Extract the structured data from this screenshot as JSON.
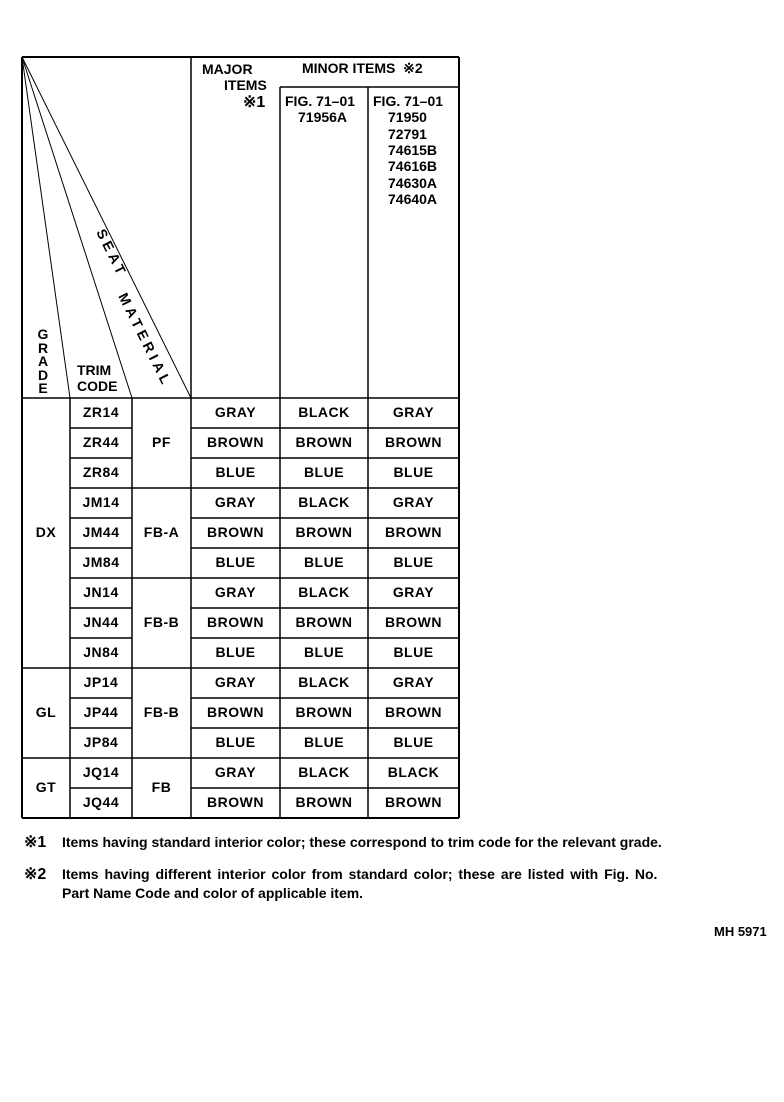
{
  "header": {
    "major_items": [
      "MAJOR",
      "ITEMS",
      "※1"
    ],
    "minor_items": "MINOR ITEMS  ※2",
    "minor_col1": [
      "FIG. 71–01",
      "71956A"
    ],
    "minor_col2": [
      "FIG. 71–01",
      "71950",
      "72791",
      "74615B",
      "74616B",
      "74630A",
      "74640A"
    ],
    "grade_label": "GRADE",
    "trim_code_label": [
      "TRIM",
      "CODE"
    ],
    "seat_label": "SEAT",
    "material_label": "MATERIAL"
  },
  "groups": [
    {
      "grade": "DX",
      "rows": 9
    },
    {
      "grade": "GL",
      "rows": 3
    },
    {
      "grade": "GT",
      "rows": 2
    }
  ],
  "seat_groups": [
    {
      "material": "PF",
      "rows": 3
    },
    {
      "material": "FB-A",
      "rows": 3
    },
    {
      "material": "FB-B",
      "rows": 3
    },
    {
      "material": "FB-B",
      "rows": 3
    },
    {
      "material": "FB",
      "rows": 2
    }
  ],
  "rows": [
    {
      "trim": "ZR14",
      "major": "GRAY",
      "minor1": "BLACK",
      "minor2": "GRAY"
    },
    {
      "trim": "ZR44",
      "major": "BROWN",
      "minor1": "BROWN",
      "minor2": "BROWN"
    },
    {
      "trim": "ZR84",
      "major": "BLUE",
      "minor1": "BLUE",
      "minor2": "BLUE"
    },
    {
      "trim": "JM14",
      "major": "GRAY",
      "minor1": "BLACK",
      "minor2": "GRAY"
    },
    {
      "trim": "JM44",
      "major": "BROWN",
      "minor1": "BROWN",
      "minor2": "BROWN"
    },
    {
      "trim": "JM84",
      "major": "BLUE",
      "minor1": "BLUE",
      "minor2": "BLUE"
    },
    {
      "trim": "JN14",
      "major": "GRAY",
      "minor1": "BLACK",
      "minor2": "GRAY"
    },
    {
      "trim": "JN44",
      "major": "BROWN",
      "minor1": "BROWN",
      "minor2": "BROWN"
    },
    {
      "trim": "JN84",
      "major": "BLUE",
      "minor1": "BLUE",
      "minor2": "BLUE"
    },
    {
      "trim": "JP14",
      "major": "GRAY",
      "minor1": "BLACK",
      "minor2": "GRAY"
    },
    {
      "trim": "JP44",
      "major": "BROWN",
      "minor1": "BROWN",
      "minor2": "BROWN"
    },
    {
      "trim": "JP84",
      "major": "BLUE",
      "minor1": "BLUE",
      "minor2": "BLUE"
    },
    {
      "trim": "JQ14",
      "major": "GRAY",
      "minor1": "BLACK",
      "minor2": "BLACK"
    },
    {
      "trim": "JQ44",
      "major": "BROWN",
      "minor1": "BROWN",
      "minor2": "BROWN"
    }
  ],
  "notes": [
    {
      "mark": "※1",
      "text": "Items having standard interior color; these correspond to trim code for the relevant grade."
    },
    {
      "mark": "※2",
      "text": "Items having different interior color from standard color; these are  listed with  Fig. No.",
      "text2": "Part Name Code and color of applicable item."
    }
  ],
  "figure_id": "MH 5971"
}
